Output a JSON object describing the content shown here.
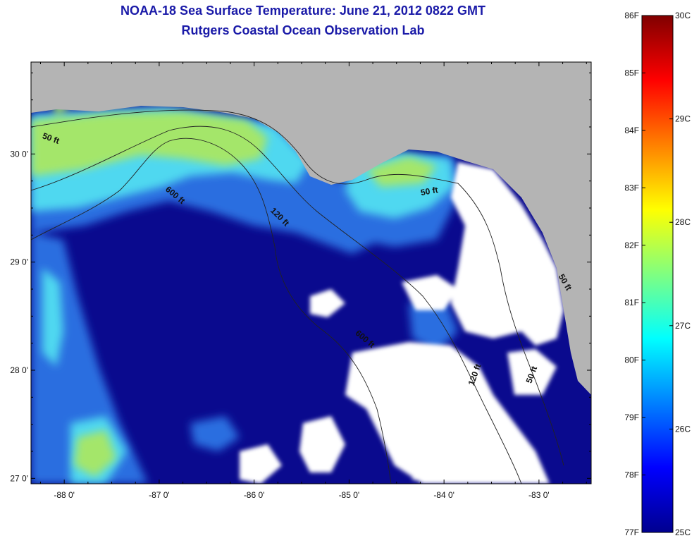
{
  "title": {
    "line1": "NOAA-18 Sea Surface Temperature:  June 21, 2012 0822 GMT",
    "line2": "Rutgers Coastal Ocean Observation Lab"
  },
  "map": {
    "lon_range": [
      -88.35,
      -82.45
    ],
    "lat_range": [
      26.95,
      30.85
    ],
    "lon_ticks": [
      {
        "value": -88,
        "label": "-88 0'"
      },
      {
        "value": -87,
        "label": "-87 0'"
      },
      {
        "value": -86,
        "label": "-86 0'"
      },
      {
        "value": -85,
        "label": "-85 0'"
      },
      {
        "value": -84,
        "label": "-84 0'"
      },
      {
        "value": -83,
        "label": "-83 0'"
      }
    ],
    "lat_ticks": [
      {
        "value": 30,
        "label": "30 0'"
      },
      {
        "value": 29,
        "label": "29 0'"
      },
      {
        "value": 28,
        "label": "28 0'"
      },
      {
        "value": 27,
        "label": "27 0'"
      }
    ],
    "colors": {
      "land": "#b4b4b4",
      "cloud": "#ffffff",
      "deep_water": "#0a0a8e",
      "mid_water": "#2a6ee0",
      "warm_water": "#4fd8f0",
      "coastal_warm": "#a4e66a",
      "hot_spot": "#e8e040"
    },
    "contour_labels": [
      {
        "text": "50 ft",
        "lon": -88.15,
        "lat": 30.12
      },
      {
        "text": "600 ft",
        "lon": -86.85,
        "lat": 29.6
      },
      {
        "text": "120 ft",
        "lon": -85.75,
        "lat": 29.4
      },
      {
        "text": "50 ft",
        "lon": -84.15,
        "lat": 29.63
      },
      {
        "text": "600 ft",
        "lon": -84.85,
        "lat": 28.27
      },
      {
        "text": "120 ft",
        "lon": -83.65,
        "lat": 27.95
      },
      {
        "text": "50 ft",
        "lon": -83.05,
        "lat": 27.95
      },
      {
        "text": "50 ft",
        "lon": -82.75,
        "lat": 28.8
      }
    ]
  },
  "colorbar": {
    "gradient": [
      "#00008f",
      "#0000ff",
      "#0080ff",
      "#00ffff",
      "#80ff80",
      "#ffff00",
      "#ff8000",
      "#ff0000",
      "#800000"
    ],
    "f_labels": [
      {
        "value": 86,
        "label": "86F"
      },
      {
        "value": 85,
        "label": "85F"
      },
      {
        "value": 84,
        "label": "84F"
      },
      {
        "value": 83,
        "label": "83F"
      },
      {
        "value": 82,
        "label": "82F"
      },
      {
        "value": 81,
        "label": "81F"
      },
      {
        "value": 80,
        "label": "80F"
      },
      {
        "value": 79,
        "label": "79F"
      },
      {
        "value": 78,
        "label": "78F"
      },
      {
        "value": 77,
        "label": "77F"
      }
    ],
    "c_labels": [
      {
        "value": 30,
        "label": "30C"
      },
      {
        "value": 29,
        "label": "29C"
      },
      {
        "value": 28,
        "label": "28C"
      },
      {
        "value": 27,
        "label": "27C"
      },
      {
        "value": 26,
        "label": "26C"
      },
      {
        "value": 25,
        "label": "25C"
      }
    ]
  }
}
